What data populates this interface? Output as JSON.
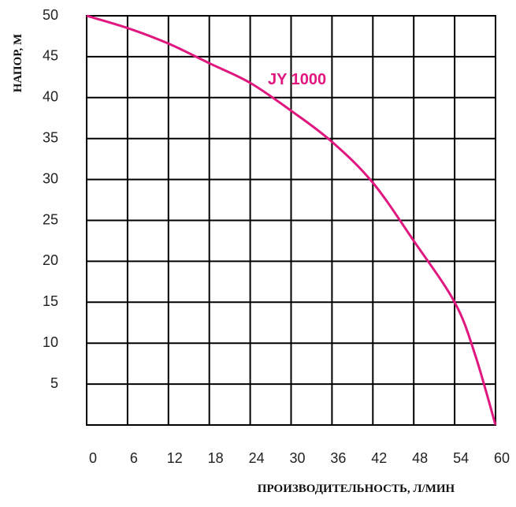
{
  "chart_data": {
    "type": "line",
    "x_label": "ПРОИЗВОДИТЕЛЬНОСТЬ, Л/МИН",
    "y_label": "НАПОР, М",
    "x": [
      0,
      6,
      12,
      18,
      24,
      30,
      36,
      42,
      48,
      54,
      57,
      60
    ],
    "series": [
      {
        "name": "JY 1000",
        "color": "#e0177f",
        "values": [
          50,
          48.5,
          46.6,
          44.2,
          41.8,
          38.4,
          34.6,
          29.6,
          22.5,
          15,
          8.6,
          0
        ]
      }
    ],
    "xlim": [
      0,
      60
    ],
    "xticks": [
      0,
      6,
      12,
      18,
      24,
      30,
      36,
      42,
      48,
      54,
      60
    ],
    "ylim": [
      0,
      50
    ],
    "yticks": [
      5,
      10,
      15,
      20,
      25,
      30,
      35,
      40,
      45,
      50
    ],
    "grid": true
  }
}
